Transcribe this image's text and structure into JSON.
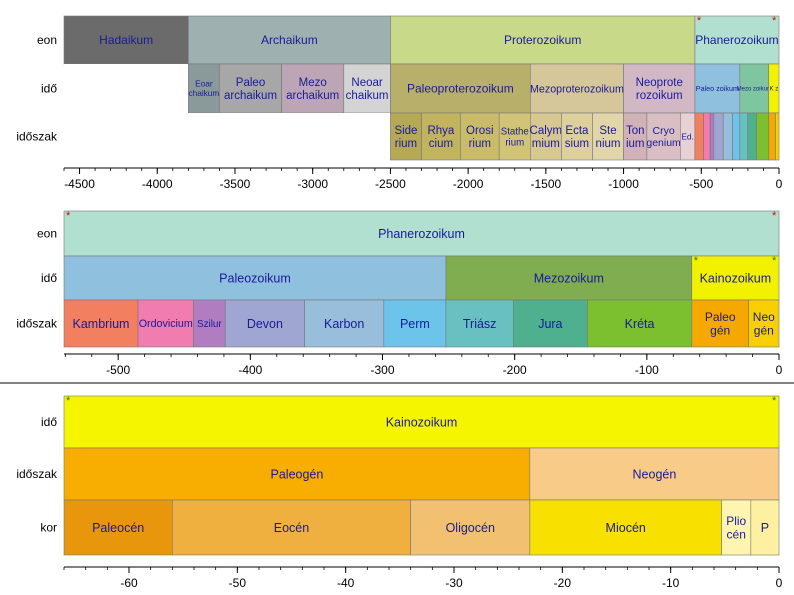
{
  "chart_data": [
    {
      "type": "bar",
      "subtype": "geologic-timescale",
      "xlim": [
        -4600,
        0
      ],
      "ticks": [
        "-4500",
        "-4000",
        "-3500",
        "-3000",
        "-2500",
        "-2000",
        "-1500",
        "-1000",
        "-500",
        "0"
      ],
      "rows": [
        {
          "label": "eon",
          "intervals": [
            {
              "name": "Hadaikum",
              "start": -4600,
              "end": -3800,
              "color": "#6b6b6b"
            },
            {
              "name": "Archaikum",
              "start": -3800,
              "end": -2500,
              "color": "#9fb0b0"
            },
            {
              "name": "Proterozoikum",
              "start": -2500,
              "end": -541,
              "color": "#c9d98a"
            },
            {
              "name": "Phanerozoikum",
              "start": -541,
              "end": 0,
              "color": "#b2e0d0",
              "marker_left": "*",
              "marker_right": "*"
            }
          ]
        },
        {
          "label": "idő",
          "intervals": [
            {
              "name": "",
              "start": -4600,
              "end": -3800,
              "color": "#ffffff"
            },
            {
              "name": "Eoar-chaikum",
              "start": -3800,
              "end": -3600,
              "color": "#8a9a9a"
            },
            {
              "name": "Paleo-archaikum",
              "start": -3600,
              "end": -3200,
              "color": "#a7a7a7"
            },
            {
              "name": "Mezo-archaikum",
              "start": -3200,
              "end": -2800,
              "color": "#bca6b6"
            },
            {
              "name": "Neoar-chaikum",
              "start": -2800,
              "end": -2500,
              "color": "#d4d4d4"
            },
            {
              "name": "Paleoproterozoikum",
              "start": -2500,
              "end": -1600,
              "color": "#b8b06a"
            },
            {
              "name": "Mezoproterozoikum",
              "start": -1600,
              "end": -1000,
              "color": "#d6c79a"
            },
            {
              "name": "Neoprote-rozoikum",
              "start": -1000,
              "end": -541,
              "color": "#d2b8c4"
            },
            {
              "name": "Paleo zoikum",
              "start": -541,
              "end": -252,
              "color": "#8fc0de"
            },
            {
              "name": "Mezo zoikum",
              "start": -252,
              "end": -66,
              "color": "#7fc6a0"
            },
            {
              "name": "K z",
              "start": -66,
              "end": 0,
              "color": "#f2f200"
            }
          ]
        },
        {
          "label": "időszak",
          "intervals": [
            {
              "name": "",
              "start": -4600,
              "end": -2500,
              "color": "#ffffff"
            },
            {
              "name": "Side-rium",
              "start": -2500,
              "end": -2300,
              "color": "#b5a955"
            },
            {
              "name": "Rhya-cium",
              "start": -2300,
              "end": -2050,
              "color": "#c2b35e"
            },
            {
              "name": "Orosi-rium",
              "start": -2050,
              "end": -1800,
              "color": "#c9bb68"
            },
            {
              "name": "Stathe-rium",
              "start": -1800,
              "end": -1600,
              "color": "#d2c476"
            },
            {
              "name": "Calym-mium",
              "start": -1600,
              "end": -1400,
              "color": "#d7c891"
            },
            {
              "name": "Ecta-sium",
              "start": -1400,
              "end": -1200,
              "color": "#ddd09c"
            },
            {
              "name": "Ste-nium",
              "start": -1200,
              "end": -1000,
              "color": "#e2d6a8"
            },
            {
              "name": "Ton-ium",
              "start": -1000,
              "end": -850,
              "color": "#d0b2b7"
            },
            {
              "name": "Cryo-genium",
              "start": -850,
              "end": -635,
              "color": "#d9bfc4"
            },
            {
              "name": "Ed.",
              "start": -635,
              "end": -541,
              "color": "#e6d1d5"
            },
            {
              "name": "",
              "start": -541,
              "end": -485,
              "color": "#f28060"
            },
            {
              "name": "",
              "start": -485,
              "end": -443,
              "color": "#f07cb0"
            },
            {
              "name": "",
              "start": -443,
              "end": -419,
              "color": "#b07ec0"
            },
            {
              "name": "",
              "start": -419,
              "end": -359,
              "color": "#a0a6d2"
            },
            {
              "name": "",
              "start": -359,
              "end": -299,
              "color": "#99bedc"
            },
            {
              "name": "",
              "start": -299,
              "end": -252,
              "color": "#6cc4ea"
            },
            {
              "name": "",
              "start": -252,
              "end": -201,
              "color": "#69c0c0"
            },
            {
              "name": "",
              "start": -201,
              "end": -145,
              "color": "#4fb090"
            },
            {
              "name": "",
              "start": -145,
              "end": -66,
              "color": "#7cc030"
            },
            {
              "name": "",
              "start": -66,
              "end": -23,
              "color": "#f5a800"
            },
            {
              "name": "",
              "start": -23,
              "end": 0,
              "color": "#f8d000"
            }
          ]
        }
      ]
    },
    {
      "type": "bar",
      "subtype": "geologic-timescale",
      "xlim": [
        -541,
        0
      ],
      "ticks": [
        "-500",
        "-400",
        "-300",
        "-200",
        "-100",
        "0"
      ],
      "rows": [
        {
          "label": "eon",
          "intervals": [
            {
              "name": "Phanerozoikum",
              "start": -541,
              "end": 0,
              "color": "#b2e0d0",
              "marker_left": "*",
              "marker_right": "*"
            }
          ]
        },
        {
          "label": "idő",
          "intervals": [
            {
              "name": "Paleozoikum",
              "start": -541,
              "end": -252,
              "color": "#8fc0de"
            },
            {
              "name": "Mezozoikum",
              "start": -252,
              "end": -66,
              "color": "#7fad50"
            },
            {
              "name": "Kainozoikum",
              "start": -66,
              "end": 0,
              "color": "#f2f200",
              "marker_left": "*",
              "marker_right": "*"
            }
          ]
        },
        {
          "label": "időszak",
          "intervals": [
            {
              "name": "Kambrium",
              "start": -541,
              "end": -485,
              "color": "#f28060"
            },
            {
              "name": "Ordovicium",
              "start": -485,
              "end": -443,
              "color": "#f07cb0"
            },
            {
              "name": "Szilur",
              "start": -443,
              "end": -419,
              "color": "#b07ec0"
            },
            {
              "name": "Devon",
              "start": -419,
              "end": -359,
              "color": "#a0a6d2"
            },
            {
              "name": "Karbon",
              "start": -359,
              "end": -299,
              "color": "#99bedc"
            },
            {
              "name": "Perm",
              "start": -299,
              "end": -252,
              "color": "#6cc4ea"
            },
            {
              "name": "Triász",
              "start": -252,
              "end": -201,
              "color": "#69c0c0"
            },
            {
              "name": "Jura",
              "start": -201,
              "end": -145,
              "color": "#4fb090"
            },
            {
              "name": "Kréta",
              "start": -145,
              "end": -66,
              "color": "#7cc030"
            },
            {
              "name": "Paleo-gén",
              "start": -66,
              "end": -23,
              "color": "#f5a800"
            },
            {
              "name": "Neo-gén",
              "start": -23,
              "end": 0,
              "color": "#f8d000"
            }
          ]
        }
      ]
    },
    {
      "type": "bar",
      "subtype": "geologic-timescale",
      "xlim": [
        -66,
        0
      ],
      "ticks": [
        "-60",
        "-50",
        "-40",
        "-30",
        "-20",
        "-10",
        "0"
      ],
      "rows": [
        {
          "label": "idő",
          "intervals": [
            {
              "name": "Kainozoikum",
              "start": -66,
              "end": 0,
              "color": "#f5f500",
              "marker_left": "*",
              "marker_right": "*"
            }
          ]
        },
        {
          "label": "időszak",
          "intervals": [
            {
              "name": "Paleogén",
              "start": -66,
              "end": -23,
              "color": "#f7ae00"
            },
            {
              "name": "Neogén",
              "start": -23,
              "end": 0,
              "color": "#f8cc88"
            }
          ]
        },
        {
          "label": "kor",
          "intervals": [
            {
              "name": "Paleocén",
              "start": -66,
              "end": -56,
              "color": "#e8960c"
            },
            {
              "name": "Eocén",
              "start": -56,
              "end": -34,
              "color": "#f0b040"
            },
            {
              "name": "Oligocén",
              "start": -34,
              "end": -23,
              "color": "#f1c070"
            },
            {
              "name": "Miocén",
              "start": -23,
              "end": -5.3,
              "color": "#f8e000"
            },
            {
              "name": "Plio-cén",
              "start": -5.3,
              "end": -2.6,
              "color": "#fdf5b0"
            },
            {
              "name": "P",
              "start": -2.6,
              "end": 0,
              "color": "#fdf0a0"
            }
          ]
        }
      ]
    }
  ]
}
